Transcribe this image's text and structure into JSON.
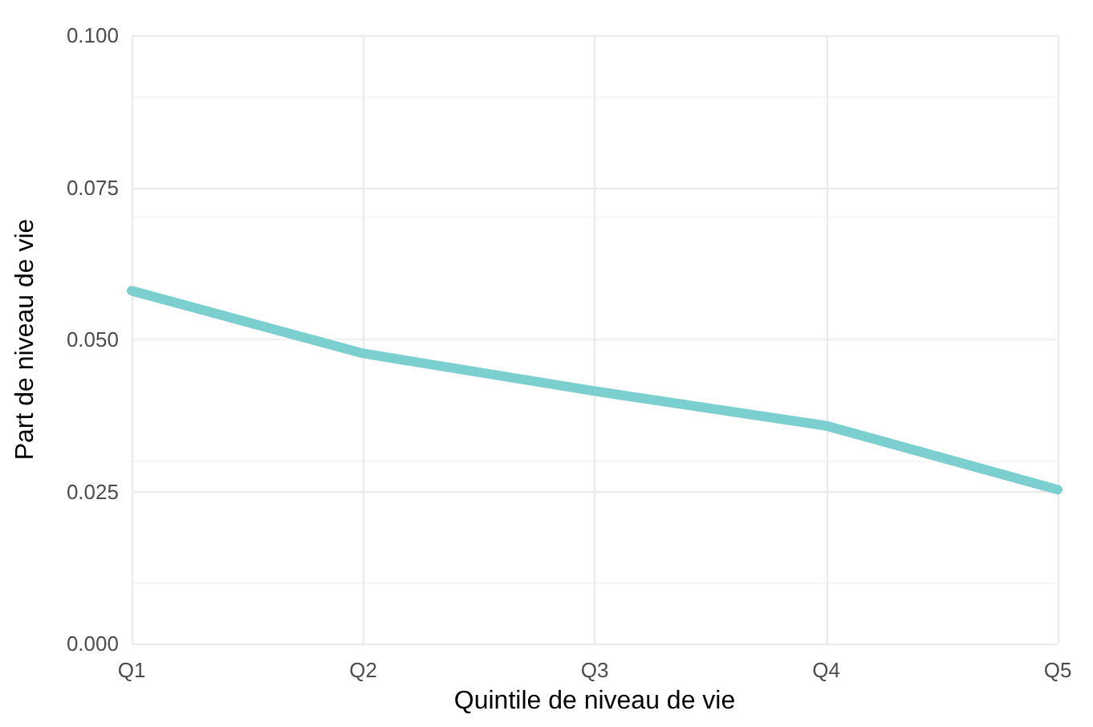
{
  "chart_data": {
    "type": "line",
    "xlabel": "Quintile de niveau de vie",
    "ylabel": "Part de niveau de vie",
    "categories": [
      "Q1",
      "Q2",
      "Q3",
      "Q4",
      "Q5"
    ],
    "series": [
      {
        "color": "#7ccfcf",
        "values": [
          0.058,
          0.0477,
          0.0415,
          0.0358,
          0.0253
        ]
      }
    ],
    "ylim": [
      0,
      0.1
    ],
    "yticks": [
      {
        "value": 0,
        "label": "0.000"
      },
      {
        "value": 0.025,
        "label": "0.025"
      },
      {
        "value": 0.05,
        "label": "0.050"
      },
      {
        "value": 0.075,
        "label": "0.075"
      },
      {
        "value": 0.1,
        "label": "0.100"
      }
    ],
    "grid": true,
    "marker": "none",
    "line_style": "solid"
  }
}
